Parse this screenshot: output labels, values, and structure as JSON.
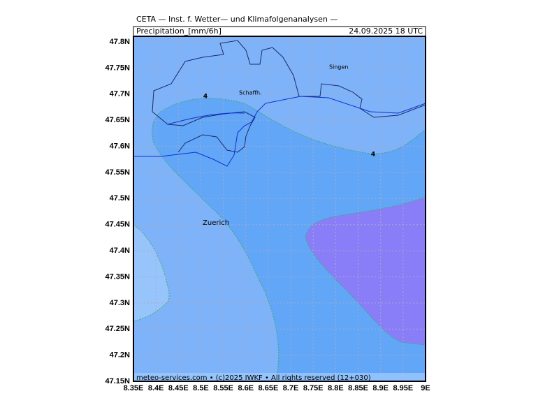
{
  "header": {
    "title": "CETA — Inst. f. Wetter— und Klimafolgenanalysen —",
    "parameter": "Precipitation_[mm/6h]",
    "valid_time": "24.09.2025 18 UTC"
  },
  "map": {
    "lon_ticks": [
      {
        "value": 8.35,
        "label": "8.35E"
      },
      {
        "value": 8.4,
        "label": "8.4E"
      },
      {
        "value": 8.45,
        "label": "8.45E"
      },
      {
        "value": 8.5,
        "label": "8.5E"
      },
      {
        "value": 8.55,
        "label": "8.55E"
      },
      {
        "value": 8.6,
        "label": "8.6E"
      },
      {
        "value": 8.65,
        "label": "8.65E"
      },
      {
        "value": 8.7,
        "label": "8.7E"
      },
      {
        "value": 8.75,
        "label": "8.75E"
      },
      {
        "value": 8.8,
        "label": "8.8E"
      },
      {
        "value": 8.85,
        "label": "8.85E"
      },
      {
        "value": 8.9,
        "label": "8.9E"
      },
      {
        "value": 8.95,
        "label": "8.95E"
      },
      {
        "value": 9,
        "label": "9E"
      }
    ],
    "lat_ticks": [
      {
        "value": 47.8,
        "label": "47.8N"
      },
      {
        "value": 47.75,
        "label": "47.75N"
      },
      {
        "value": 47.7,
        "label": "47.7N"
      },
      {
        "value": 47.65,
        "label": "47.65N"
      },
      {
        "value": 47.6,
        "label": "47.6N"
      },
      {
        "value": 47.55,
        "label": "47.55N"
      },
      {
        "value": 47.5,
        "label": "47.5N"
      },
      {
        "value": 47.45,
        "label": "47.45N"
      },
      {
        "value": 47.4,
        "label": "47.4N"
      },
      {
        "value": 47.35,
        "label": "47.35N"
      },
      {
        "value": 47.3,
        "label": "47.3N"
      },
      {
        "value": 47.25,
        "label": "47.25N"
      },
      {
        "value": 47.2,
        "label": "47.2N"
      },
      {
        "value": 47.15,
        "label": "47.15N"
      }
    ],
    "places": [
      "Singen",
      "Schaffh.",
      "Zuerich"
    ],
    "contour_labels": [
      "4",
      "4"
    ]
  },
  "footer": "meteo-services.com • (c)2025 IWKF • All rights reserved (12+030)"
}
